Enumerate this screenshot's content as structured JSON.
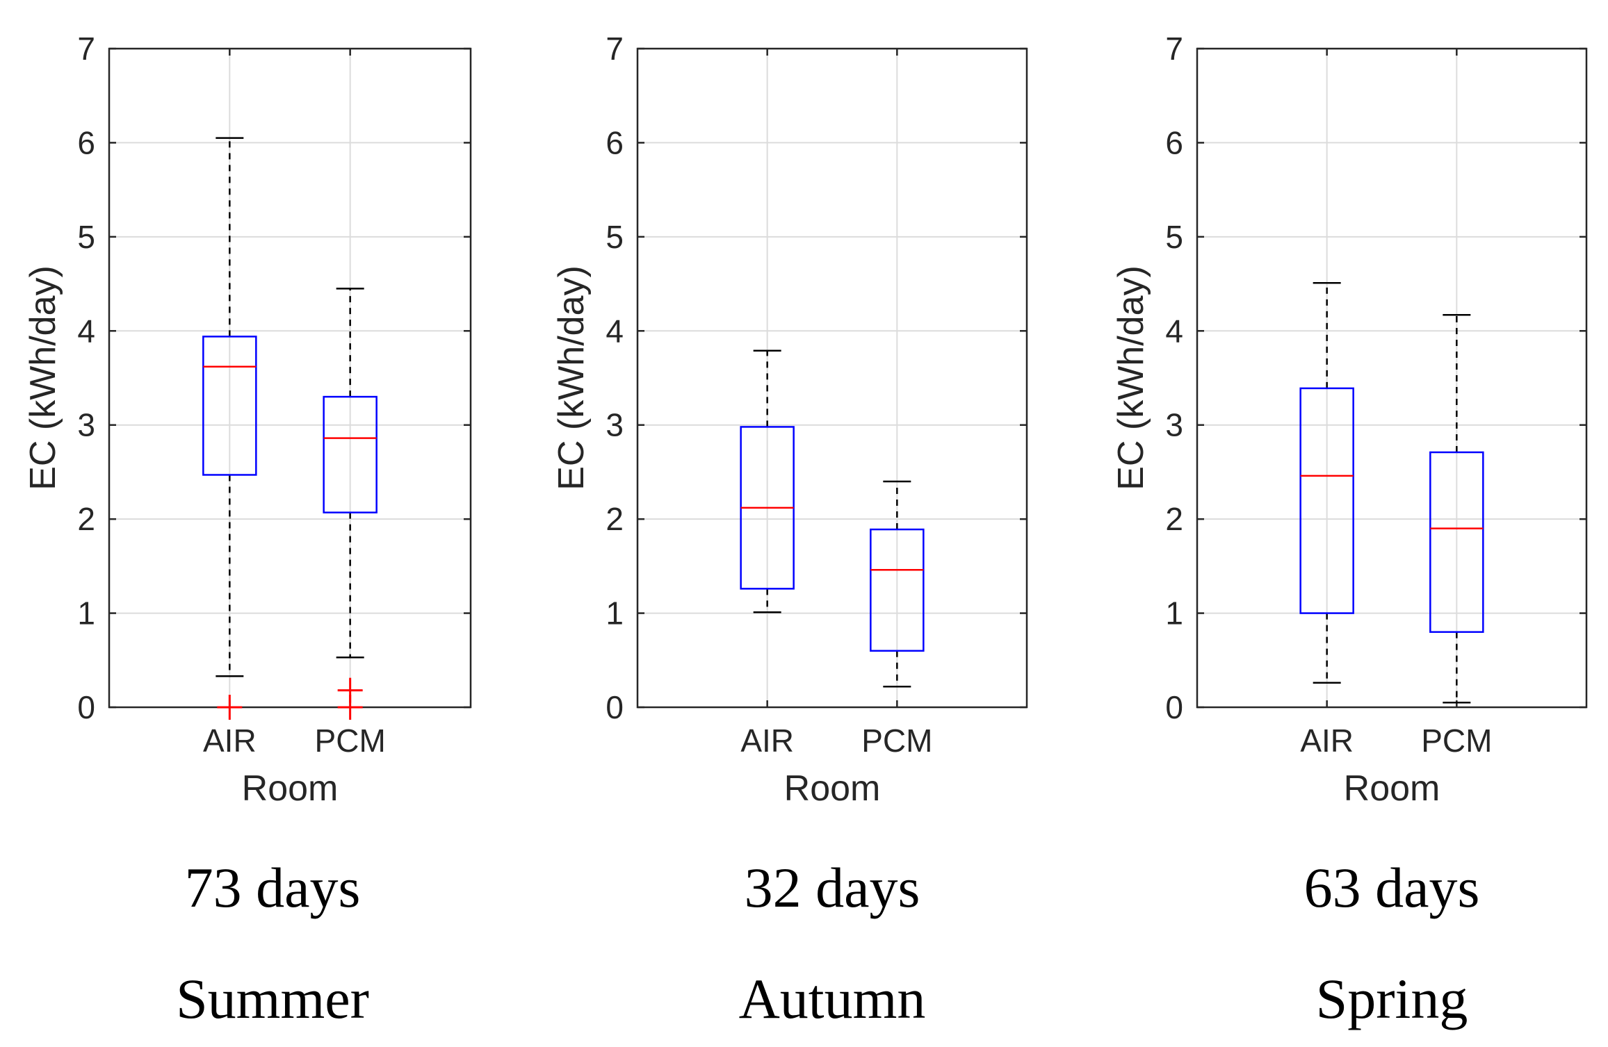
{
  "colors": {
    "box": "#0000ff",
    "median": "#ff0000",
    "outlier": "#ff0000",
    "whisker": "#000000",
    "grid": "#dcdcdc",
    "axis": "#262626"
  },
  "chart_data": [
    {
      "type": "boxplot",
      "title": "",
      "xlabel": "Room",
      "ylabel": "EC (kWh/day)",
      "ylim": [
        0,
        7
      ],
      "yticks": [
        "0",
        "1",
        "2",
        "3",
        "4",
        "5",
        "6",
        "7"
      ],
      "grid": true,
      "caption_days": "73 days",
      "caption_season": "Summer",
      "categories": [
        "AIR",
        "PCM"
      ],
      "boxes": [
        {
          "name": "AIR",
          "whisker_low": 0.33,
          "q1": 2.47,
          "median": 3.62,
          "q3": 3.94,
          "whisker_high": 6.05,
          "outliers": [
            0.0
          ]
        },
        {
          "name": "PCM",
          "whisker_low": 0.53,
          "q1": 2.07,
          "median": 2.86,
          "q3": 3.3,
          "whisker_high": 4.45,
          "outliers": [
            0.0,
            0.18
          ]
        }
      ]
    },
    {
      "type": "boxplot",
      "title": "",
      "xlabel": "Room",
      "ylabel": "EC (kWh/day)",
      "ylim": [
        0,
        7
      ],
      "yticks": [
        "0",
        "1",
        "2",
        "3",
        "4",
        "5",
        "6",
        "7"
      ],
      "grid": true,
      "caption_days": "32 days",
      "caption_season": "Autumn",
      "categories": [
        "AIR",
        "PCM"
      ],
      "boxes": [
        {
          "name": "AIR",
          "whisker_low": 1.01,
          "q1": 1.26,
          "median": 2.12,
          "q3": 2.98,
          "whisker_high": 3.79,
          "outliers": []
        },
        {
          "name": "PCM",
          "whisker_low": 0.22,
          "q1": 0.6,
          "median": 1.46,
          "q3": 1.89,
          "whisker_high": 2.4,
          "outliers": []
        }
      ]
    },
    {
      "type": "boxplot",
      "title": "",
      "xlabel": "Room",
      "ylabel": "EC (kWh/day)",
      "ylim": [
        0,
        7
      ],
      "yticks": [
        "0",
        "1",
        "2",
        "3",
        "4",
        "5",
        "6",
        "7"
      ],
      "grid": true,
      "caption_days": "63 days",
      "caption_season": "Spring",
      "categories": [
        "AIR",
        "PCM"
      ],
      "boxes": [
        {
          "name": "AIR",
          "whisker_low": 0.26,
          "q1": 1.0,
          "median": 2.46,
          "q3": 3.39,
          "whisker_high": 4.51,
          "outliers": []
        },
        {
          "name": "PCM",
          "whisker_low": 0.05,
          "q1": 0.8,
          "median": 1.9,
          "q3": 2.71,
          "whisker_high": 4.17,
          "outliers": []
        }
      ]
    }
  ]
}
